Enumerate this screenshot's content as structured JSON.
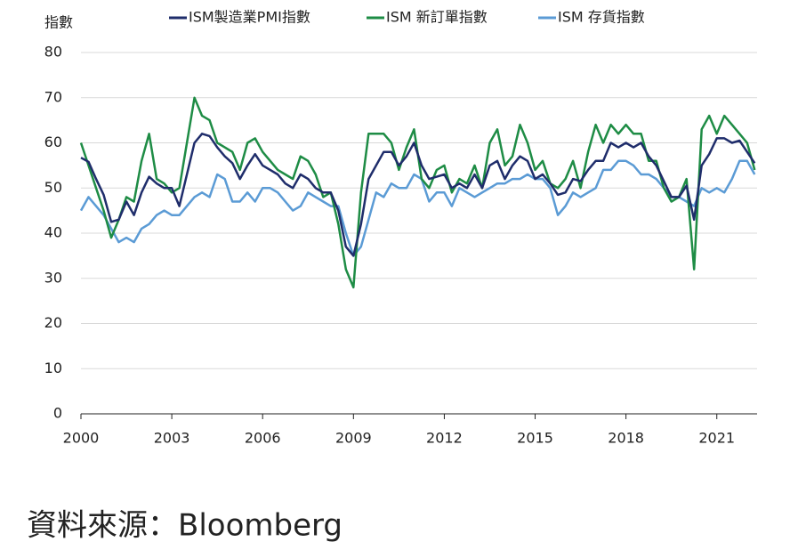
{
  "chart_data": {
    "type": "line",
    "y_label": "指數",
    "source": "資料來源：Bloomberg",
    "x": [
      2000,
      2000.25,
      2000.5,
      2000.75,
      2001,
      2001.25,
      2001.5,
      2001.75,
      2002,
      2002.25,
      2002.5,
      2002.75,
      2003,
      2003.25,
      2003.5,
      2003.75,
      2004,
      2004.25,
      2004.5,
      2004.75,
      2005,
      2005.25,
      2005.5,
      2005.75,
      2006,
      2006.25,
      2006.5,
      2006.75,
      2007,
      2007.25,
      2007.5,
      2007.75,
      2008,
      2008.25,
      2008.5,
      2008.75,
      2009,
      2009.25,
      2009.5,
      2009.75,
      2010,
      2010.25,
      2010.5,
      2010.75,
      2011,
      2011.25,
      2011.5,
      2011.75,
      2012,
      2012.25,
      2012.5,
      2012.75,
      2013,
      2013.25,
      2013.5,
      2013.75,
      2014,
      2014.25,
      2014.5,
      2014.75,
      2015,
      2015.25,
      2015.5,
      2015.75,
      2016,
      2016.25,
      2016.5,
      2016.75,
      2017,
      2017.25,
      2017.5,
      2017.75,
      2018,
      2018.25,
      2018.5,
      2018.75,
      2019,
      2019.25,
      2019.5,
      2019.75,
      2020,
      2020.25,
      2020.5,
      2020.75,
      2021,
      2021.25,
      2021.5,
      2021.75,
      2022,
      2022.25
    ],
    "series": [
      {
        "name": "ISM製造業PMI指數",
        "color": "#1f2d6b",
        "values": [
          56.7,
          55.8,
          52,
          48.5,
          42.5,
          43,
          47,
          44,
          49,
          52.5,
          51,
          50,
          50,
          46,
          53,
          60,
          62,
          61.5,
          59,
          57,
          55.5,
          52,
          55,
          57.5,
          55,
          54,
          53,
          51,
          50,
          53,
          52,
          50,
          49,
          49,
          45,
          37,
          35,
          42,
          52,
          55,
          58,
          58,
          55,
          57,
          60,
          55,
          52,
          52.5,
          53,
          50,
          51,
          50,
          53,
          50,
          55,
          56,
          52,
          55,
          57,
          56,
          52,
          53,
          51,
          48.5,
          49,
          52,
          51.5,
          54,
          56,
          56,
          60,
          59,
          60,
          59,
          60,
          57,
          55,
          51.5,
          48,
          48,
          50.5,
          43,
          55,
          57.5,
          61,
          61,
          60,
          60.5,
          58,
          55.5
        ]
      },
      {
        "name": "ISM 新訂單指數",
        "color": "#1e8c45",
        "values": [
          60,
          55,
          50,
          45,
          39,
          43,
          48,
          47,
          56,
          62,
          52,
          51,
          49,
          50,
          60,
          70,
          66,
          65,
          60,
          59,
          58,
          54,
          60,
          61,
          58,
          56,
          54,
          53,
          52,
          57,
          56,
          53,
          48,
          49,
          42,
          32,
          28,
          49,
          62,
          62,
          62,
          60,
          54,
          59,
          63,
          52,
          50,
          54,
          55,
          49,
          52,
          51,
          55,
          50,
          60,
          63,
          55,
          57,
          64,
          60,
          54,
          56,
          51,
          50,
          52,
          56,
          50,
          58,
          64,
          60,
          64,
          62,
          64,
          62,
          62,
          56,
          56,
          50,
          47,
          48,
          52,
          32,
          63,
          66,
          62,
          66,
          64,
          62,
          60,
          54
        ]
      },
      {
        "name": "ISM 存貨指數",
        "color": "#5b9bd5",
        "values": [
          45,
          48,
          46,
          44,
          41,
          38,
          39,
          38,
          41,
          42,
          44,
          45,
          44,
          44,
          46,
          48,
          49,
          48,
          53,
          52,
          47,
          47,
          49,
          47,
          50,
          50,
          49,
          47,
          45,
          46,
          49,
          48,
          47,
          46,
          46,
          40,
          35,
          37,
          43,
          49,
          48,
          51,
          50,
          50,
          53,
          52,
          47,
          49,
          49,
          46,
          50,
          49,
          48,
          49,
          50,
          51,
          51,
          52,
          52,
          53,
          52,
          52,
          50,
          44,
          46,
          49,
          48,
          49,
          50,
          54,
          54,
          56,
          56,
          55,
          53,
          53,
          52,
          50,
          48,
          48,
          47,
          46,
          50,
          49,
          50,
          49,
          52,
          56,
          56,
          53
        ]
      }
    ],
    "xlim": [
      2000,
      2022.33
    ],
    "xticks": [
      2000,
      2003,
      2006,
      2009,
      2012,
      2015,
      2018,
      2021
    ],
    "ylim": [
      0,
      80
    ],
    "yticks": [
      0,
      10,
      20,
      30,
      40,
      50,
      60,
      70,
      80
    ],
    "grid": true
  }
}
